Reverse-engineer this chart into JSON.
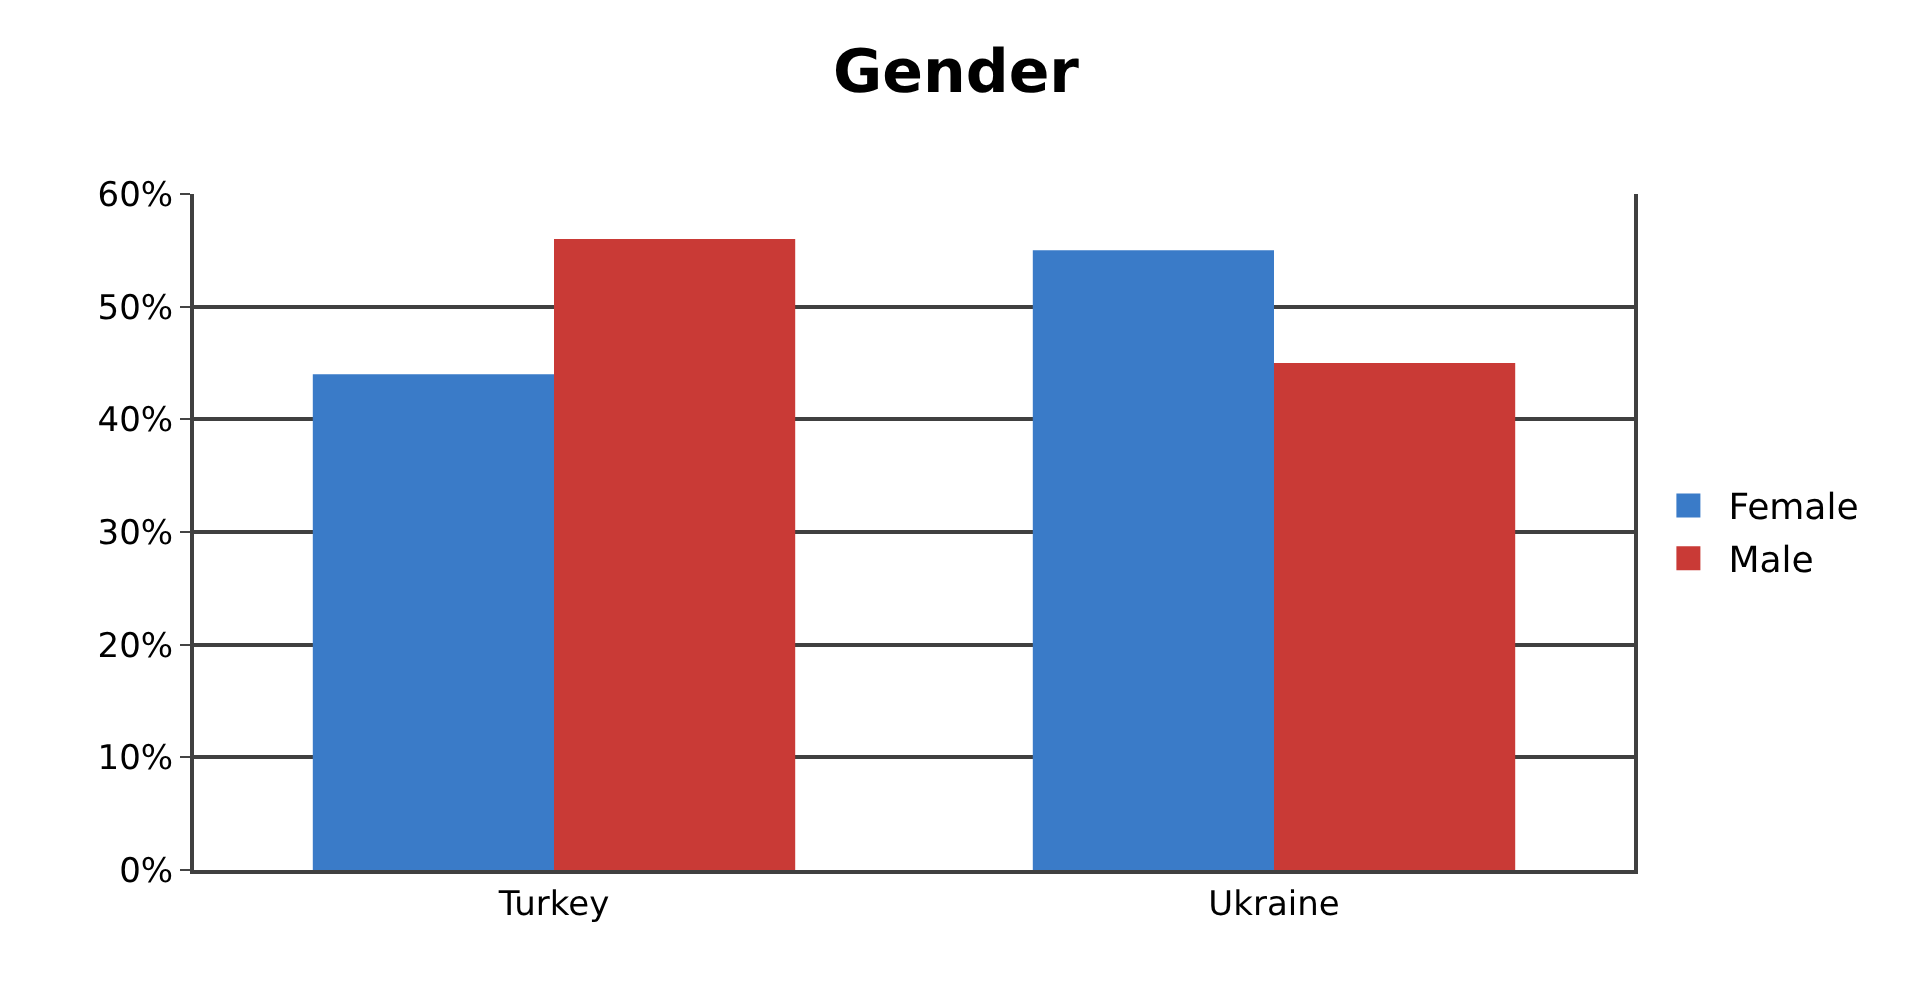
{
  "chart_data": {
    "type": "bar",
    "title": "Gender",
    "categories": [
      "Turkey",
      "Ukraine"
    ],
    "series": [
      {
        "name": "Female",
        "color": "#3a7bc8",
        "values": [
          44,
          55
        ]
      },
      {
        "name": "Male",
        "color": "#c93a36",
        "values": [
          56,
          45
        ]
      }
    ],
    "ylim": [
      0,
      60
    ],
    "yticks": [
      {
        "value": 0,
        "label": "0%"
      },
      {
        "value": 10,
        "label": "10%"
      },
      {
        "value": 20,
        "label": "20%"
      },
      {
        "value": 30,
        "label": "30%"
      },
      {
        "value": 40,
        "label": "40%"
      },
      {
        "value": 50,
        "label": "50%"
      },
      {
        "value": 60,
        "label": "60%"
      }
    ],
    "grid": "y",
    "legend": "right"
  }
}
